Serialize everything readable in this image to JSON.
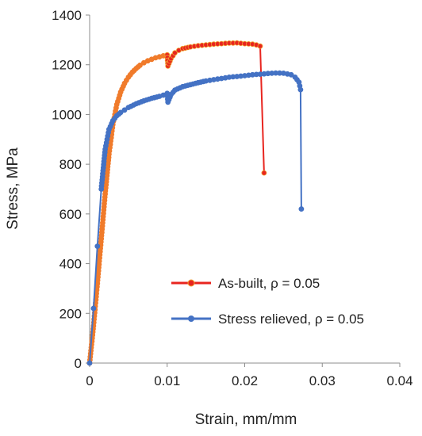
{
  "chart_data": {
    "type": "line",
    "title": "",
    "xlabel": "Strain, mm/mm",
    "ylabel": "Stress, MPa",
    "xlim": [
      0,
      0.04
    ],
    "ylim": [
      0,
      1400
    ],
    "x_ticks": [
      "0",
      "0.01",
      "0.02",
      "0.03",
      "0.04"
    ],
    "y_ticks": [
      "0",
      "200",
      "400",
      "600",
      "800",
      "1000",
      "1200",
      "1400"
    ],
    "grid": false,
    "legend_position": "bottom-right",
    "series": [
      {
        "name": "As-built, ρ = 0.05",
        "color": "#E8251F",
        "x": [
          0.0,
          0.0005,
          0.001,
          0.0015,
          0.002,
          0.0025,
          0.003,
          0.0035,
          0.004,
          0.0045,
          0.005,
          0.0055,
          0.006,
          0.0065,
          0.007,
          0.0075,
          0.008,
          0.0085,
          0.009,
          0.0095,
          0.01,
          0.0101,
          0.0105,
          0.011,
          0.0115,
          0.012,
          0.013,
          0.014,
          0.015,
          0.016,
          0.017,
          0.018,
          0.019,
          0.02,
          0.021,
          0.0215,
          0.022,
          0.0225
        ],
        "values": [
          0,
          150,
          320,
          500,
          680,
          840,
          960,
          1040,
          1090,
          1125,
          1150,
          1170,
          1185,
          1198,
          1208,
          1216,
          1222,
          1228,
          1232,
          1236,
          1240,
          1195,
          1225,
          1248,
          1258,
          1265,
          1272,
          1277,
          1280,
          1283,
          1285,
          1287,
          1288,
          1285,
          1283,
          1280,
          1275,
          765
        ],
        "smooth_segment_color": "#F07B2B",
        "smooth_until_x": 0.0095
      },
      {
        "name": "Stress relieved, ρ = 0.05",
        "color": "#4472C4",
        "x": [
          0.0,
          0.0005,
          0.001,
          0.0015,
          0.002,
          0.0025,
          0.003,
          0.0035,
          0.004,
          0.0045,
          0.005,
          0.006,
          0.007,
          0.008,
          0.009,
          0.0095,
          0.01,
          0.0101,
          0.0105,
          0.011,
          0.012,
          0.013,
          0.014,
          0.015,
          0.016,
          0.017,
          0.018,
          0.019,
          0.02,
          0.021,
          0.022,
          0.023,
          0.024,
          0.025,
          0.026,
          0.0265,
          0.027,
          0.0272,
          0.0273
        ],
        "values": [
          0,
          220,
          470,
          700,
          860,
          940,
          975,
          995,
          1008,
          1018,
          1028,
          1043,
          1055,
          1065,
          1073,
          1078,
          1085,
          1050,
          1080,
          1098,
          1112,
          1120,
          1128,
          1135,
          1140,
          1145,
          1150,
          1153,
          1156,
          1160,
          1162,
          1165,
          1167,
          1166,
          1160,
          1150,
          1130,
          1100,
          620
        ]
      }
    ]
  }
}
